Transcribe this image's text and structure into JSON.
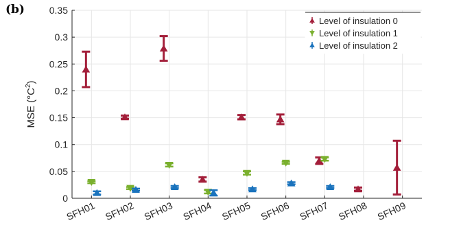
{
  "panel_label": "(b)",
  "chart_data": {
    "type": "scatter",
    "ylabel": "MSE (°C",
    "ylabel_sup": "2",
    "ylabel_close": ")",
    "categories": [
      "SFH01",
      "SFH02",
      "SFH03",
      "SFH04",
      "SFH05",
      "SFH06",
      "SFH07",
      "SFH08",
      "SFH09"
    ],
    "ylim": [
      0,
      0.35
    ],
    "yticks": [
      0,
      0.05,
      0.1,
      0.15,
      0.2,
      0.25,
      0.3,
      0.35
    ],
    "ytick_labels": [
      "0",
      "0.05",
      "0.1",
      "0.15",
      "0.2",
      "0.25",
      "0.3",
      "0.35"
    ],
    "grid": true,
    "legend_position": "top-right",
    "series": [
      {
        "name": "Level of insulation 0",
        "color": "#a31f3a",
        "marker": "triangle-up",
        "mean": [
          0.24,
          0.151,
          0.279,
          0.035,
          0.151,
          0.147,
          0.07,
          0.017,
          0.057
        ],
        "low": [
          0.207,
          0.148,
          0.256,
          0.031,
          0.147,
          0.138,
          0.064,
          0.014,
          0.007
        ],
        "high": [
          0.273,
          0.154,
          0.302,
          0.039,
          0.155,
          0.156,
          0.076,
          0.02,
          0.107
        ]
      },
      {
        "name": "Level of insulation 1",
        "color": "#7ab02e",
        "marker": "triangle-down",
        "mean": [
          0.03,
          0.019,
          0.062,
          0.012,
          0.047,
          0.066,
          0.073,
          null,
          null
        ],
        "low": [
          0.028,
          0.017,
          0.059,
          0.009,
          0.044,
          0.064,
          0.07,
          null,
          null
        ],
        "high": [
          0.032,
          0.021,
          0.065,
          0.015,
          0.05,
          0.068,
          0.076,
          null,
          null
        ]
      },
      {
        "name": "Level of insulation 2",
        "color": "#1a73bd",
        "marker": "triangle-up",
        "mean": [
          0.01,
          0.016,
          0.021,
          0.01,
          0.017,
          0.028,
          0.021,
          null,
          null
        ],
        "low": [
          0.007,
          0.014,
          0.019,
          0.005,
          0.015,
          0.026,
          0.019,
          null,
          null
        ],
        "high": [
          0.013,
          0.018,
          0.023,
          0.015,
          0.019,
          0.03,
          0.023,
          null,
          null
        ]
      }
    ]
  }
}
